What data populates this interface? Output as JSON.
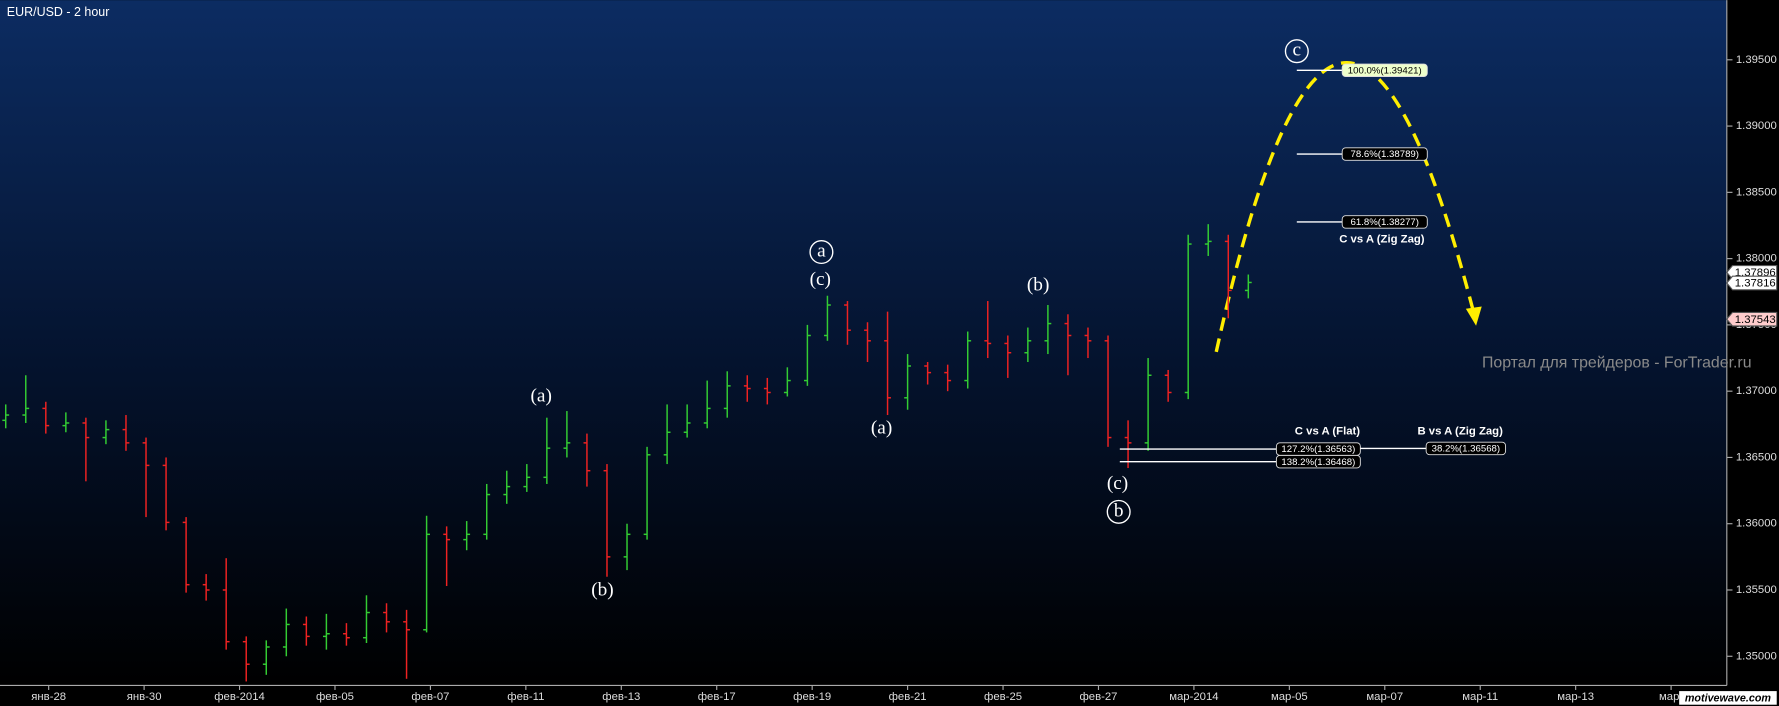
{
  "chart_data": {
    "type": "ohlc",
    "title": "EUR/USD - 2 hour",
    "watermark": "Портал для трейдеров - ForTrader.ru",
    "logo": "motivewave.com",
    "up_color": "#33cc33",
    "down_color": "#ee2222",
    "x": [
      -0.45,
      -0.24,
      -0.03,
      0.18,
      0.39,
      0.6,
      0.81,
      1.02,
      1.23,
      1.44,
      1.65,
      1.86,
      2.07,
      2.28,
      2.49,
      2.7,
      2.91,
      3.12,
      3.33,
      3.54,
      3.75,
      3.96,
      4.17,
      4.38,
      4.59,
      4.8,
      5.01,
      5.22,
      5.43,
      5.64,
      5.85,
      6.06,
      6.27,
      6.48,
      6.69,
      6.9,
      7.11,
      7.32,
      7.53,
      7.74,
      7.95,
      8.16,
      8.37,
      8.58,
      8.79,
      9.0,
      9.21,
      9.42,
      9.63,
      9.84,
      10.05,
      10.26,
      10.47,
      10.68,
      10.89,
      11.1,
      11.31,
      11.52,
      11.73,
      11.94,
      12.15,
      12.36,
      12.57
    ],
    "open": [
      1.3678,
      1.3682,
      1.3687,
      1.3674,
      1.3676,
      1.3665,
      1.3671,
      1.3661,
      1.3644,
      1.3601,
      1.3554,
      1.355,
      1.3511,
      1.3494,
      1.3507,
      1.3524,
      1.3515,
      1.3517,
      1.3514,
      1.3533,
      1.3526,
      1.352,
      1.3592,
      1.3588,
      1.3592,
      1.3622,
      1.3628,
      1.3635,
      1.3657,
      1.3661,
      1.364,
      1.3575,
      1.3592,
      1.3652,
      1.3669,
      1.3676,
      1.3687,
      1.3704,
      1.3702,
      1.3699,
      1.3708,
      1.3742,
      1.3765,
      1.3746,
      1.3738,
      1.3695,
      1.3719,
      1.3714,
      1.3708,
      1.3738,
      1.3736,
      1.3729,
      1.3738,
      1.3751,
      1.3742,
      1.3738,
      1.3665,
      1.3661,
      1.3712,
      1.3699,
      1.3811,
      1.3813,
      1.3776
    ],
    "high": [
      1.369,
      1.3712,
      1.3692,
      1.3684,
      1.368,
      1.3678,
      1.3682,
      1.3665,
      1.365,
      1.3605,
      1.3562,
      1.3574,
      1.3515,
      1.3512,
      1.3536,
      1.353,
      1.3532,
      1.3525,
      1.3546,
      1.354,
      1.3535,
      1.3606,
      1.3598,
      1.3602,
      1.363,
      1.364,
      1.3645,
      1.368,
      1.3685,
      1.3668,
      1.3645,
      1.36,
      1.3658,
      1.369,
      1.369,
      1.3708,
      1.3715,
      1.3712,
      1.371,
      1.3718,
      1.375,
      1.3772,
      1.3768,
      1.3752,
      1.376,
      1.3728,
      1.3722,
      1.372,
      1.3745,
      1.3768,
      1.3742,
      1.3748,
      1.3765,
      1.3758,
      1.3748,
      1.3742,
      1.3678,
      1.3725,
      1.3716,
      1.3818,
      1.3826,
      1.3818,
      1.3788
    ],
    "low": [
      1.3672,
      1.3676,
      1.3668,
      1.3669,
      1.3632,
      1.366,
      1.3655,
      1.3605,
      1.3595,
      1.3548,
      1.3542,
      1.3505,
      1.3481,
      1.3486,
      1.35,
      1.3508,
      1.3505,
      1.3508,
      1.351,
      1.3518,
      1.3483,
      1.3518,
      1.3553,
      1.358,
      1.3588,
      1.3615,
      1.3624,
      1.363,
      1.365,
      1.3628,
      1.356,
      1.3565,
      1.3588,
      1.3645,
      1.3665,
      1.3672,
      1.368,
      1.3692,
      1.369,
      1.3696,
      1.3704,
      1.3738,
      1.3735,
      1.3722,
      1.3682,
      1.3686,
      1.3705,
      1.37,
      1.3702,
      1.3725,
      1.371,
      1.3722,
      1.3728,
      1.3712,
      1.3725,
      1.3658,
      1.3642,
      1.3655,
      1.3692,
      1.3694,
      1.3802,
      1.3755,
      1.377
    ],
    "close": [
      1.3682,
      1.3687,
      1.3674,
      1.3676,
      1.3665,
      1.3671,
      1.3661,
      1.3644,
      1.3601,
      1.3554,
      1.355,
      1.3511,
      1.3494,
      1.3507,
      1.3524,
      1.3515,
      1.3517,
      1.3514,
      1.3533,
      1.3526,
      1.352,
      1.3592,
      1.3588,
      1.3592,
      1.3622,
      1.3628,
      1.3635,
      1.3657,
      1.3661,
      1.364,
      1.3575,
      1.3592,
      1.3652,
      1.3669,
      1.3676,
      1.3687,
      1.3704,
      1.3702,
      1.3699,
      1.3708,
      1.3742,
      1.3765,
      1.3746,
      1.3738,
      1.3695,
      1.3719,
      1.3714,
      1.3708,
      1.3738,
      1.3736,
      1.3729,
      1.3738,
      1.3751,
      1.3742,
      1.3738,
      1.3665,
      1.3661,
      1.3712,
      1.3699,
      1.3811,
      1.3813,
      1.3776,
      1.3782
    ],
    "xlim": [
      -0.51,
      17.56
    ],
    "xticks": [
      {
        "value": 0,
        "label": "янв-28"
      },
      {
        "value": 1,
        "label": "янв-30"
      },
      {
        "value": 2,
        "label": "фев-2014"
      },
      {
        "value": 3,
        "label": "фев-05"
      },
      {
        "value": 4,
        "label": "фев-07"
      },
      {
        "value": 5,
        "label": "фев-11"
      },
      {
        "value": 6,
        "label": "фев-13"
      },
      {
        "value": 7,
        "label": "фев-17"
      },
      {
        "value": 8,
        "label": "фев-19"
      },
      {
        "value": 9,
        "label": "фев-21"
      },
      {
        "value": 10,
        "label": "фев-25"
      },
      {
        "value": 11,
        "label": "фев-27"
      },
      {
        "value": 12,
        "label": "мар-2014"
      },
      {
        "value": 13,
        "label": "мар-05"
      },
      {
        "value": 14,
        "label": "мар-07"
      },
      {
        "value": 15,
        "label": "мар-11"
      },
      {
        "value": 16,
        "label": "мар-13"
      },
      {
        "value": 17,
        "label": "мар-"
      }
    ],
    "ylim": [
      1.3478,
      1.3995
    ],
    "yticks": [
      {
        "value": 1.35,
        "label": "1.35000"
      },
      {
        "value": 1.355,
        "label": "1.35500"
      },
      {
        "value": 1.36,
        "label": "1.36000"
      },
      {
        "value": 1.365,
        "label": "1.36500"
      },
      {
        "value": 1.37,
        "label": "1.37000"
      },
      {
        "value": 1.375,
        "label": "1.37500"
      },
      {
        "value": 1.38,
        "label": "1.38000"
      },
      {
        "value": 1.385,
        "label": "1.38500"
      },
      {
        "value": 1.39,
        "label": "1.39000"
      },
      {
        "value": 1.395,
        "label": "1.39500"
      }
    ],
    "price_tags": [
      {
        "value": 1.37896,
        "label": "1.37896",
        "color": "#ffffff"
      },
      {
        "value": 1.37816,
        "label": "1.37816",
        "color": "#ffffff"
      },
      {
        "value": 1.37543,
        "label": "1.37543",
        "color": "#ffcccc"
      }
    ],
    "primary_waves": [
      "a",
      "b",
      "c"
    ],
    "minor_waves": [
      "(a)",
      "(b)",
      "(c)",
      "(a)",
      "(b)",
      "(c)"
    ],
    "fib_groups": [
      {
        "caption": "C vs A (Zig Zag)",
        "levels": [
          {
            "value": 1.39421,
            "label": "100.0%(1.39421)"
          },
          {
            "value": 1.38789,
            "label": "78.6%(1.38789)"
          },
          {
            "value": 1.38277,
            "label": "61.8%(1.38277)"
          }
        ]
      },
      {
        "caption": "C vs A (Flat)",
        "levels": [
          {
            "value": 1.36563,
            "label": "127.2%(1.36563)"
          },
          {
            "value": 1.36468,
            "label": "138.2%(1.36468)"
          }
        ]
      },
      {
        "caption": "B vs A (Zig Zag)",
        "levels": [
          {
            "value": 1.36568,
            "label": "38.2%(1.36568)"
          }
        ]
      }
    ]
  }
}
